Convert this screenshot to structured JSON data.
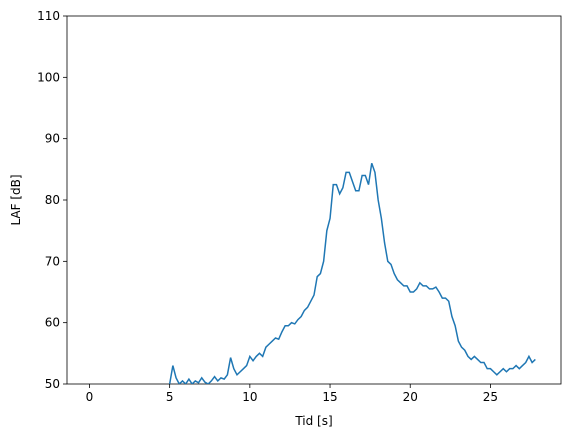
{
  "chart_data": {
    "type": "line",
    "xlabel": "Tid [s]",
    "ylabel": "LAF [dB]",
    "x": [
      5.0,
      5.2,
      5.4,
      5.6,
      5.8,
      6.0,
      6.2,
      6.4,
      6.6,
      6.8,
      7.0,
      7.2,
      7.4,
      7.6,
      7.8,
      8.0,
      8.2,
      8.4,
      8.6,
      8.8,
      9.0,
      9.2,
      9.4,
      9.6,
      9.8,
      10.0,
      10.2,
      10.4,
      10.6,
      10.8,
      11.0,
      11.2,
      11.4,
      11.6,
      11.8,
      12.0,
      12.2,
      12.4,
      12.6,
      12.8,
      13.0,
      13.2,
      13.4,
      13.6,
      13.8,
      14.0,
      14.2,
      14.4,
      14.6,
      14.8,
      15.0,
      15.2,
      15.4,
      15.6,
      15.8,
      16.0,
      16.2,
      16.4,
      16.6,
      16.8,
      17.0,
      17.2,
      17.4,
      17.6,
      17.8,
      18.0,
      18.2,
      18.4,
      18.6,
      18.8,
      19.0,
      19.2,
      19.4,
      19.6,
      19.8,
      20.0,
      20.2,
      20.4,
      20.6,
      20.8,
      21.0,
      21.2,
      21.4,
      21.6,
      21.8,
      22.0,
      22.2,
      22.4,
      22.6,
      22.8,
      23.0,
      23.2,
      23.4,
      23.6,
      23.8,
      24.0,
      24.2,
      24.4,
      24.6,
      24.8,
      25.0,
      25.2,
      25.4,
      25.6,
      25.8,
      26.0,
      26.2,
      26.4,
      26.6,
      26.8,
      27.0,
      27.2,
      27.4,
      27.6,
      27.8
    ],
    "series": [
      {
        "name": "LAF",
        "color": "#1f77b4",
        "values": [
          50,
          53,
          51,
          50,
          50.5,
          50,
          50.8,
          50,
          50.5,
          50.2,
          51,
          50.3,
          50,
          50.5,
          51.2,
          50.5,
          51,
          50.8,
          51.5,
          54.3,
          52.5,
          51.5,
          52,
          52.5,
          53,
          54.5,
          53.8,
          54.5,
          55,
          54.5,
          56,
          56.5,
          57,
          57.5,
          57.3,
          58.5,
          59.5,
          59.5,
          60,
          59.8,
          60.5,
          61,
          62,
          62.5,
          63.5,
          64.5,
          67.5,
          68,
          70,
          75,
          77,
          82.5,
          82.5,
          81,
          82,
          84.5,
          84.5,
          83,
          81.5,
          81.5,
          84,
          84,
          82.5,
          86,
          84.5,
          80,
          77,
          73,
          70,
          69.5,
          68,
          67,
          66.5,
          66,
          66,
          65,
          65,
          65.5,
          66.5,
          66,
          66,
          65.5,
          65.5,
          65.8,
          65,
          64,
          64,
          63.5,
          61,
          59.5,
          57,
          56,
          55.5,
          54.5,
          54,
          54.5,
          54,
          53.5,
          53.5,
          52.5,
          52.5,
          52,
          51.5,
          52,
          52.5,
          52,
          52.5,
          52.5,
          53,
          52.5,
          53,
          53.5,
          54.5,
          53.5,
          54
        ]
      }
    ],
    "xlim": [
      -1.4,
      29.4
    ],
    "ylim": [
      50,
      110
    ],
    "xticks": [
      0,
      5,
      10,
      15,
      20,
      25
    ],
    "yticks": [
      50,
      60,
      70,
      80,
      90,
      100,
      110
    ]
  }
}
